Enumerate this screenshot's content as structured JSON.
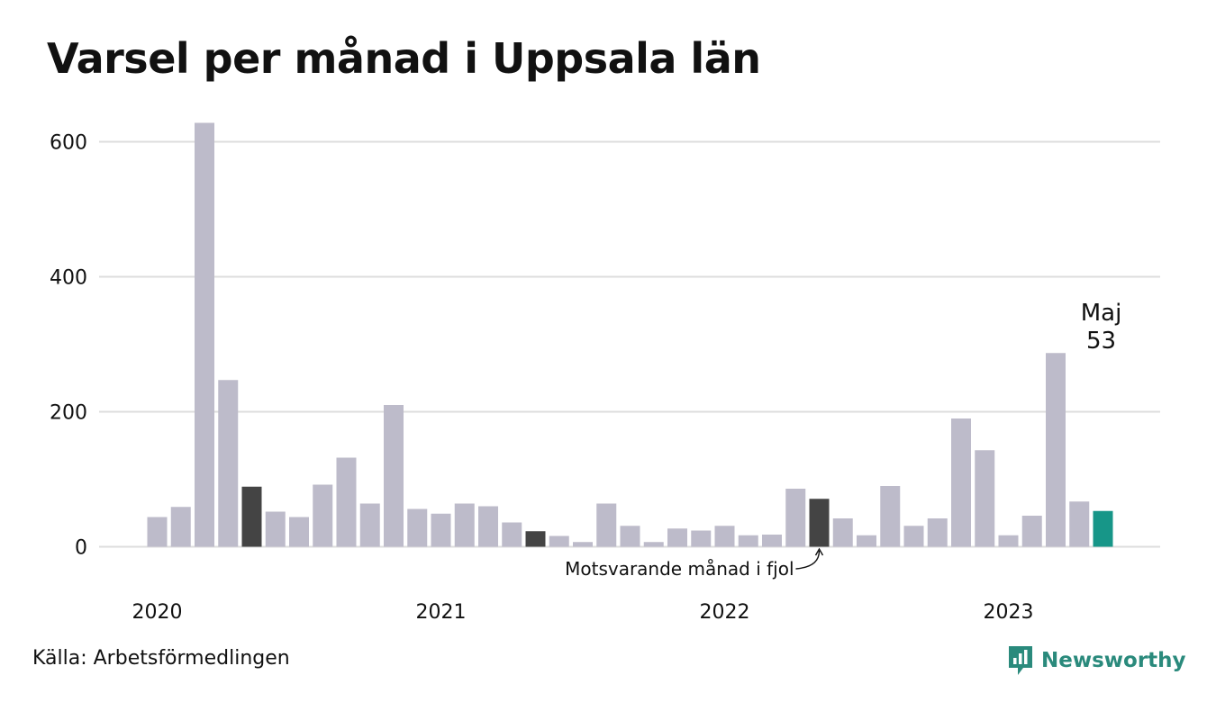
{
  "title": "Varsel per månad i Uppsala län",
  "source": "Källa: Arbetsförmedlingen",
  "brand": {
    "name": "Newsworthy",
    "icon": "newsworthy-logo-icon",
    "color": "#2a8a7c"
  },
  "colors": {
    "default_bar": "#bdbbca",
    "highlight_bar": "#444444",
    "latest_bar": "#179688",
    "grid": "#dddddd",
    "text": "#111111"
  },
  "chart_data": {
    "type": "bar",
    "title": "Varsel per månad i Uppsala län",
    "xlabel": "",
    "ylabel": "",
    "ylim": [
      0,
      640
    ],
    "yticks": [
      0,
      200,
      400,
      600
    ],
    "year_labels": [
      {
        "label": "2020",
        "index": 0
      },
      {
        "label": "2021",
        "index": 12
      },
      {
        "label": "2022",
        "index": 24
      },
      {
        "label": "2023",
        "index": 36
      }
    ],
    "categories": [
      "2020-01",
      "2020-02",
      "2020-03",
      "2020-04",
      "2020-05",
      "2020-06",
      "2020-07",
      "2020-08",
      "2020-09",
      "2020-10",
      "2020-11",
      "2020-12",
      "2021-01",
      "2021-02",
      "2021-03",
      "2021-04",
      "2021-05",
      "2021-06",
      "2021-07",
      "2021-08",
      "2021-09",
      "2021-10",
      "2021-11",
      "2021-12",
      "2022-01",
      "2022-02",
      "2022-03",
      "2022-04",
      "2022-05",
      "2022-06",
      "2022-07",
      "2022-08",
      "2022-09",
      "2022-10",
      "2022-11",
      "2022-12",
      "2023-01",
      "2023-02",
      "2023-03",
      "2023-04",
      "2023-05"
    ],
    "values": [
      44,
      59,
      628,
      247,
      89,
      52,
      44,
      92,
      132,
      64,
      210,
      56,
      49,
      64,
      60,
      36,
      23,
      16,
      7,
      64,
      31,
      7,
      27,
      24,
      31,
      17,
      18,
      86,
      71,
      42,
      17,
      90,
      31,
      42,
      190,
      143,
      17,
      46,
      287,
      67,
      53
    ],
    "highlight_indices": [
      4,
      16,
      28
    ],
    "latest_index": 40,
    "grid": true,
    "legend": "none",
    "annotations": {
      "previous_year": {
        "text": "Motsvarande månad i fjol",
        "index": 28
      },
      "latest": {
        "month": "Maj",
        "value": "53",
        "index": 40
      }
    }
  }
}
